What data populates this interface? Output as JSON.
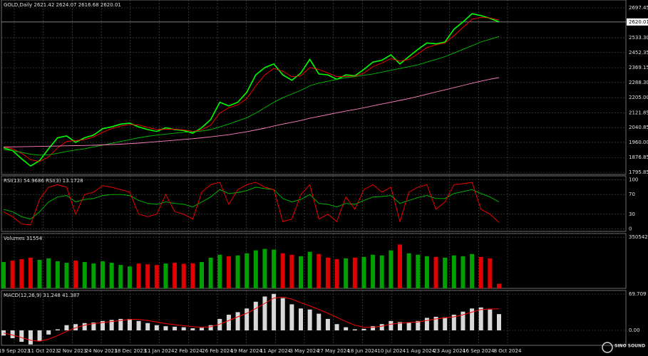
{
  "x_axis": {
    "labels": [
      "19 Sep 2023",
      "11 Oct 2023",
      "2 Nov 2023",
      "24 Nov 2023",
      "18 Dec 2023",
      "11 Jan 2024",
      "2 Feb 2024",
      "26 Feb 2024",
      "19 Mar 2024",
      "11 Apr 2024",
      "3 May 2024",
      "27 May 2024",
      "18 Jun 2024",
      "10 Jul 2024",
      "1 Aug 2024",
      "23 Aug 2024",
      "16 Sep 2024",
      "8 Oct 2024"
    ]
  },
  "watermark": "SINO SOUND",
  "chart_data": [
    {
      "type": "line",
      "title": "GOLD,Daily  2621.42 2624.07 2616.68 2620.01",
      "ylim": [
        1784.1,
        2740.4
      ],
      "yticks": [
        {
          "value": 2697.45,
          "label": "2697.45"
        },
        {
          "value": 2533.3,
          "label": "2533.30"
        },
        {
          "value": 2452.35,
          "label": "2452.35"
        },
        {
          "value": 2369.15,
          "label": "2369.15"
        },
        {
          "value": 2288.3,
          "label": "2288.30"
        },
        {
          "value": 2205.0,
          "label": "2205.00"
        },
        {
          "value": 2121.85,
          "label": "2121.85"
        },
        {
          "value": 2040.85,
          "label": "2040.85"
        },
        {
          "value": 1960.0,
          "label": "1960.00"
        },
        {
          "value": 1876.85,
          "label": "1876.85"
        },
        {
          "value": 1795.85,
          "label": "1795.85"
        }
      ],
      "last_price": {
        "value": 2620.01,
        "label": "2620.01"
      },
      "grid": true,
      "series": [
        {
          "color": "#00ff00",
          "values": [
            1930,
            1915,
            1870,
            1830,
            1860,
            1925,
            1985,
            1995,
            1960,
            1985,
            2000,
            2035,
            2045,
            2060,
            2065,
            2045,
            2030,
            2020,
            2040,
            2030,
            2025,
            2010,
            2040,
            2085,
            2180,
            2160,
            2180,
            2235,
            2330,
            2370,
            2390,
            2330,
            2300,
            2340,
            2415,
            2335,
            2330,
            2305,
            2330,
            2325,
            2360,
            2400,
            2410,
            2440,
            2390,
            2430,
            2470,
            2505,
            2500,
            2510,
            2580,
            2620,
            2665,
            2655,
            2640,
            2620
          ]
        },
        {
          "color": "#ff0000",
          "values": [
            1935,
            1925,
            1900,
            1865,
            1855,
            1880,
            1930,
            1965,
            1970,
            1975,
            1990,
            2015,
            2035,
            2050,
            2058,
            2055,
            2042,
            2030,
            2032,
            2032,
            2028,
            2020,
            2028,
            2055,
            2120,
            2150,
            2165,
            2200,
            2270,
            2330,
            2365,
            2350,
            2320,
            2325,
            2370,
            2360,
            2340,
            2320,
            2322,
            2323,
            2340,
            2375,
            2395,
            2420,
            2405,
            2415,
            2445,
            2480,
            2495,
            2505,
            2545,
            2590,
            2635,
            2645,
            2642,
            2630
          ]
        },
        {
          "color": "#00c000",
          "values": [
            1920,
            1915,
            1905,
            1895,
            1890,
            1892,
            1900,
            1910,
            1918,
            1925,
            1935,
            1945,
            1955,
            1965,
            1975,
            1985,
            1993,
            2000,
            2005,
            2010,
            2015,
            2018,
            2022,
            2030,
            2045,
            2060,
            2078,
            2095,
            2120,
            2150,
            2180,
            2205,
            2225,
            2245,
            2270,
            2285,
            2295,
            2305,
            2315,
            2320,
            2328,
            2335,
            2345,
            2355,
            2365,
            2375,
            2385,
            2400,
            2415,
            2430,
            2450,
            2470,
            2490,
            2510,
            2525,
            2540
          ]
        },
        {
          "color": "#ff80c0",
          "values": [
            1935,
            1935,
            1936,
            1937,
            1938,
            1939,
            1940,
            1941,
            1942,
            1943,
            1944,
            1946,
            1948,
            1950,
            1953,
            1956,
            1960,
            1964,
            1968,
            1972,
            1976,
            1980,
            1985,
            1990,
            1996,
            2002,
            2010,
            2018,
            2028,
            2038,
            2050,
            2060,
            2070,
            2080,
            2092,
            2102,
            2112,
            2122,
            2132,
            2140,
            2150,
            2160,
            2170,
            2180,
            2190,
            2200,
            2212,
            2224,
            2236,
            2248,
            2260,
            2272,
            2284,
            2296,
            2306,
            2315
          ]
        }
      ]
    },
    {
      "type": "line",
      "title": "RSI(13) 54.9686 RSI(3) 13.1728",
      "ylim": [
        -5,
        108
      ],
      "yticks": [
        100,
        70,
        30,
        0
      ],
      "grid": true,
      "series": [
        {
          "color": "#00c000",
          "values": [
            40,
            35,
            25,
            20,
            35,
            55,
            65,
            68,
            55,
            60,
            62,
            68,
            70,
            70,
            68,
            58,
            52,
            50,
            55,
            52,
            50,
            45,
            55,
            65,
            80,
            72,
            74,
            78,
            85,
            82,
            80,
            62,
            55,
            60,
            70,
            52,
            50,
            45,
            52,
            50,
            58,
            65,
            66,
            68,
            52,
            58,
            64,
            68,
            62,
            62,
            72,
            76,
            80,
            72,
            65,
            55
          ]
        },
        {
          "color": "#ff0000",
          "values": [
            35,
            25,
            10,
            8,
            60,
            85,
            90,
            85,
            30,
            70,
            75,
            88,
            85,
            80,
            75,
            30,
            25,
            30,
            70,
            35,
            30,
            20,
            75,
            90,
            95,
            50,
            80,
            90,
            95,
            85,
            80,
            15,
            20,
            70,
            90,
            20,
            30,
            15,
            65,
            40,
            80,
            90,
            75,
            85,
            15,
            75,
            85,
            90,
            40,
            55,
            90,
            92,
            95,
            40,
            30,
            13
          ]
        }
      ]
    },
    {
      "type": "bar",
      "title": "Volumes 31554",
      "ylim": [
        0,
        375000
      ],
      "yticks": [
        350542
      ],
      "grid": true,
      "up_color": "#00a000",
      "down_color": "#e00000",
      "values": [
        180000,
        190000,
        200000,
        210000,
        195000,
        205000,
        185000,
        175000,
        190000,
        180000,
        170000,
        185000,
        175000,
        160000,
        150000,
        170000,
        165000,
        160000,
        170000,
        175000,
        168000,
        172000,
        180000,
        210000,
        230000,
        220000,
        225000,
        240000,
        260000,
        270000,
        265000,
        240000,
        230000,
        220000,
        250000,
        235000,
        210000,
        200000,
        205000,
        210000,
        215000,
        230000,
        225000,
        260000,
        300000,
        240000,
        230000,
        220000,
        215000,
        210000,
        225000,
        220000,
        235000,
        215000,
        205000,
        31554
      ]
    },
    {
      "type": "bar",
      "title": "MACD(12,26,9) 31.248 41.387",
      "ylim": [
        -28.7,
        76.54
      ],
      "yticks": [
        69.709,
        {
          "value": 0,
          "label": "0.00"
        }
      ],
      "grid": true,
      "color": "#d8d8d8",
      "signal_color": "#ff0000",
      "values": [
        -10,
        -15,
        -22,
        -27,
        -20,
        -8,
        2,
        10,
        12,
        14,
        15,
        18,
        20,
        22,
        22,
        18,
        14,
        10,
        8,
        7,
        6,
        4,
        5,
        10,
        22,
        30,
        35,
        42,
        55,
        65,
        70,
        62,
        50,
        42,
        40,
        32,
        22,
        12,
        6,
        2,
        3,
        8,
        12,
        18,
        16,
        15,
        18,
        24,
        26,
        25,
        30,
        36,
        42,
        44,
        40,
        31.248
      ],
      "signal": [
        -5,
        -9,
        -14,
        -19,
        -21,
        -17,
        -10,
        -2,
        5,
        10,
        13,
        15,
        17,
        19,
        21,
        21,
        19,
        16,
        13,
        11,
        9,
        7,
        6,
        7,
        12,
        19,
        26,
        33,
        42,
        52,
        62,
        64,
        60,
        53,
        47,
        40,
        33,
        25,
        17,
        10,
        6,
        6,
        8,
        12,
        14,
        15,
        16,
        19,
        22,
        24,
        26,
        30,
        35,
        40,
        41,
        41.387
      ]
    }
  ]
}
